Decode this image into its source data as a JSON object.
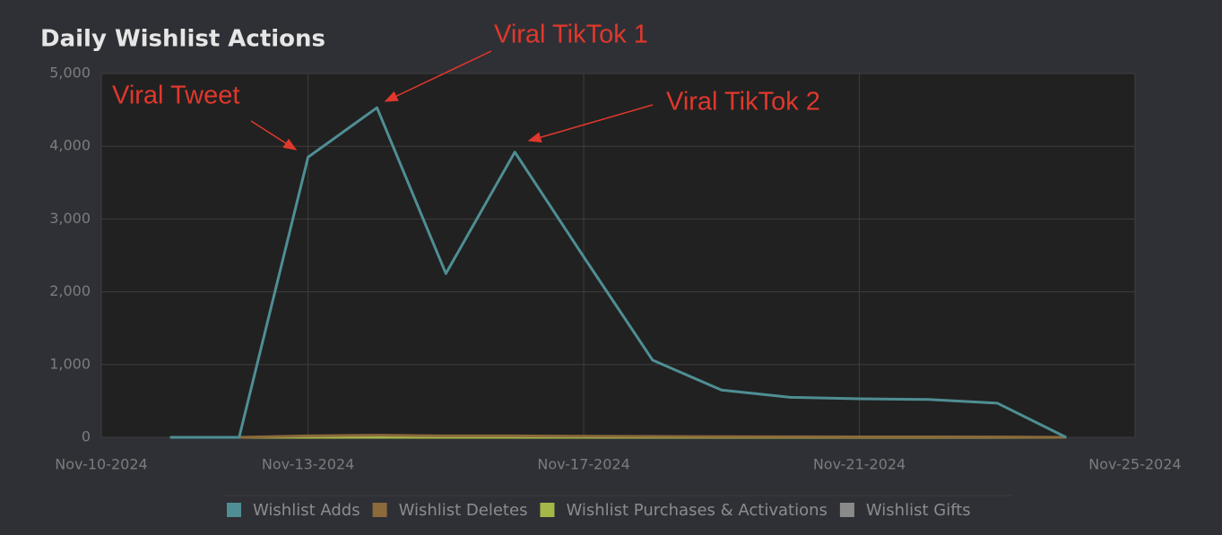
{
  "chart_data": {
    "type": "line",
    "title": "Daily Wishlist Actions",
    "x": [
      "Nov-11-2024",
      "Nov-12-2024",
      "Nov-13-2024",
      "Nov-14-2024",
      "Nov-15-2024",
      "Nov-16-2024",
      "Nov-17-2024",
      "Nov-18-2024",
      "Nov-19-2024",
      "Nov-20-2024",
      "Nov-21-2024",
      "Nov-22-2024",
      "Nov-23-2024",
      "Nov-24-2024"
    ],
    "series": [
      {
        "name": "Wishlist Adds",
        "color": "#4f8e94",
        "values": [
          0,
          0,
          3850,
          4530,
          2250,
          3920,
          2480,
          1060,
          650,
          550,
          530,
          520,
          470,
          0
        ]
      },
      {
        "name": "Wishlist Deletes",
        "color": "#8c6a3c",
        "values": [
          0,
          0,
          20,
          30,
          20,
          20,
          15,
          12,
          10,
          8,
          6,
          6,
          5,
          0
        ]
      },
      {
        "name": "Wishlist Purchases & Activations",
        "color": "#a4b84a",
        "values": [
          0,
          0,
          0,
          0,
          0,
          0,
          0,
          0,
          0,
          0,
          0,
          0,
          0,
          0
        ]
      },
      {
        "name": "Wishlist Gifts",
        "color": "#8a8a8a",
        "values": [
          0,
          0,
          0,
          0,
          0,
          0,
          0,
          0,
          0,
          0,
          0,
          0,
          0,
          0
        ]
      }
    ],
    "xlim": [
      "Nov-10-2024",
      "Nov-25-2024"
    ],
    "xticks": [
      "Nov-10-2024",
      "Nov-13-2024",
      "Nov-17-2024",
      "Nov-21-2024",
      "Nov-25-2024"
    ],
    "ylim": [
      0,
      5000
    ],
    "yticks": [
      0,
      {
        "value": 1000,
        "label": "1,000"
      },
      {
        "value": 2000,
        "label": "2,000"
      },
      {
        "value": 3000,
        "label": "3,000"
      },
      {
        "value": 4000,
        "label": "4,000"
      },
      {
        "value": 5000,
        "label": "5,000"
      }
    ],
    "grid": true,
    "annotations": [
      "Viral Tweet",
      "Viral TikTok 1",
      "Viral TikTok 2"
    ]
  }
}
